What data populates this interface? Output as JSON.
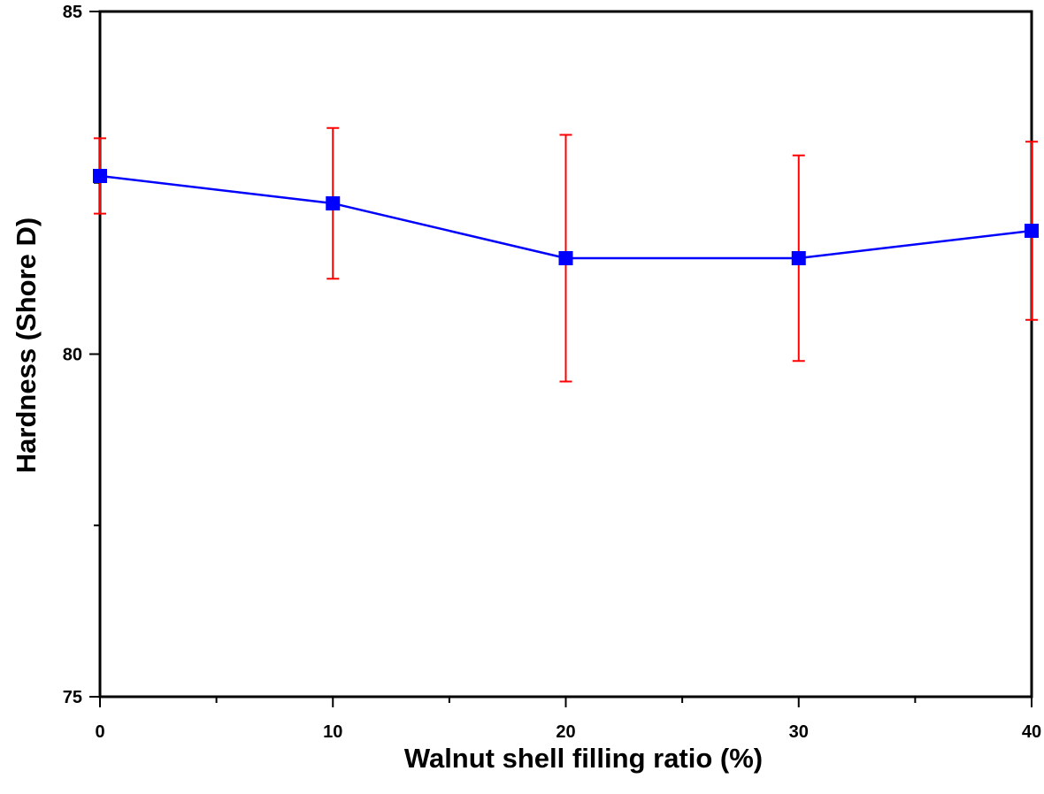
{
  "chart_data": {
    "type": "line",
    "x_label": "Walnut shell filling ratio (%)",
    "y_label": "Hardness (Shore D)",
    "x": [
      0,
      10,
      20,
      30,
      40
    ],
    "series": [
      {
        "color": "#0000ff",
        "error_color": "#ff0000",
        "values": [
          82.6,
          82.2,
          81.4,
          81.4,
          81.8
        ],
        "errors": [
          0.55,
          1.1,
          1.8,
          1.5,
          1.3
        ]
      }
    ],
    "xlim": [
      0,
      40
    ],
    "xticks": [
      0,
      10,
      20,
      30,
      40
    ],
    "xticks_minor": [
      5,
      15,
      25,
      35
    ],
    "ylim": [
      75,
      85
    ],
    "yticks": [
      75,
      80,
      85
    ],
    "yticks_minor": [
      77.5,
      82.5
    ]
  }
}
